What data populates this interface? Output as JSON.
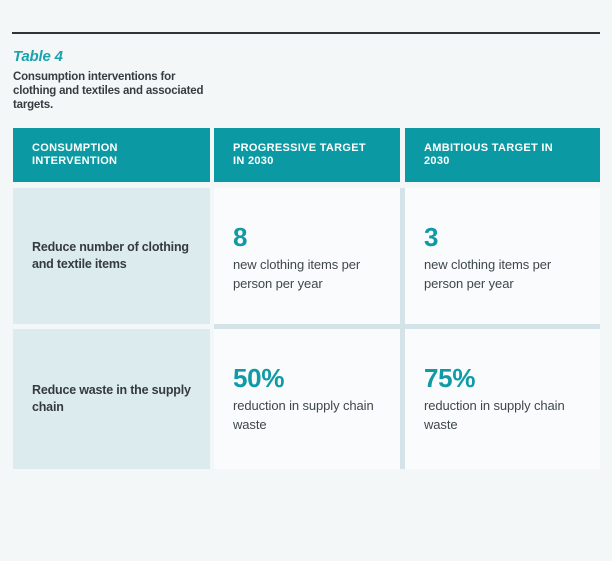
{
  "header": {
    "table_label": "Table 4",
    "caption": "Consumption interventions for clothing and textiles and associated targets."
  },
  "table": {
    "columns": [
      {
        "label": "CONSUMPTION INTERVENTION"
      },
      {
        "label": "PROGRESSIVE TARGET IN 2030"
      },
      {
        "label": "AMBITIOUS TARGET IN 2030"
      }
    ],
    "rows": [
      {
        "intervention": "Reduce number of clothing and textile items",
        "progressive": {
          "value": "8",
          "description": "new clothing items per person per year"
        },
        "ambitious": {
          "value": "3",
          "description": "new clothing items per person per year"
        }
      },
      {
        "intervention": "Reduce waste in the supply chain",
        "progressive": {
          "value": "50%",
          "description": "reduction in supply chain waste"
        },
        "ambitious": {
          "value": "75%",
          "description": "reduction in supply chain waste"
        }
      }
    ]
  },
  "colors": {
    "header_teal": "#0b99a3",
    "accent_teal": "#0f9aa5",
    "title_teal": "#1aa2ae",
    "light_blue_cell": "#dcebee",
    "divider_blue": "#d3e3e8",
    "page_background": "#f3f7f8",
    "cell_background": "#f9fbfc",
    "rule_dark": "#2e3438",
    "heading_text": "#363d41",
    "body_text": "#3f474b",
    "header_text": "#ffffff"
  }
}
